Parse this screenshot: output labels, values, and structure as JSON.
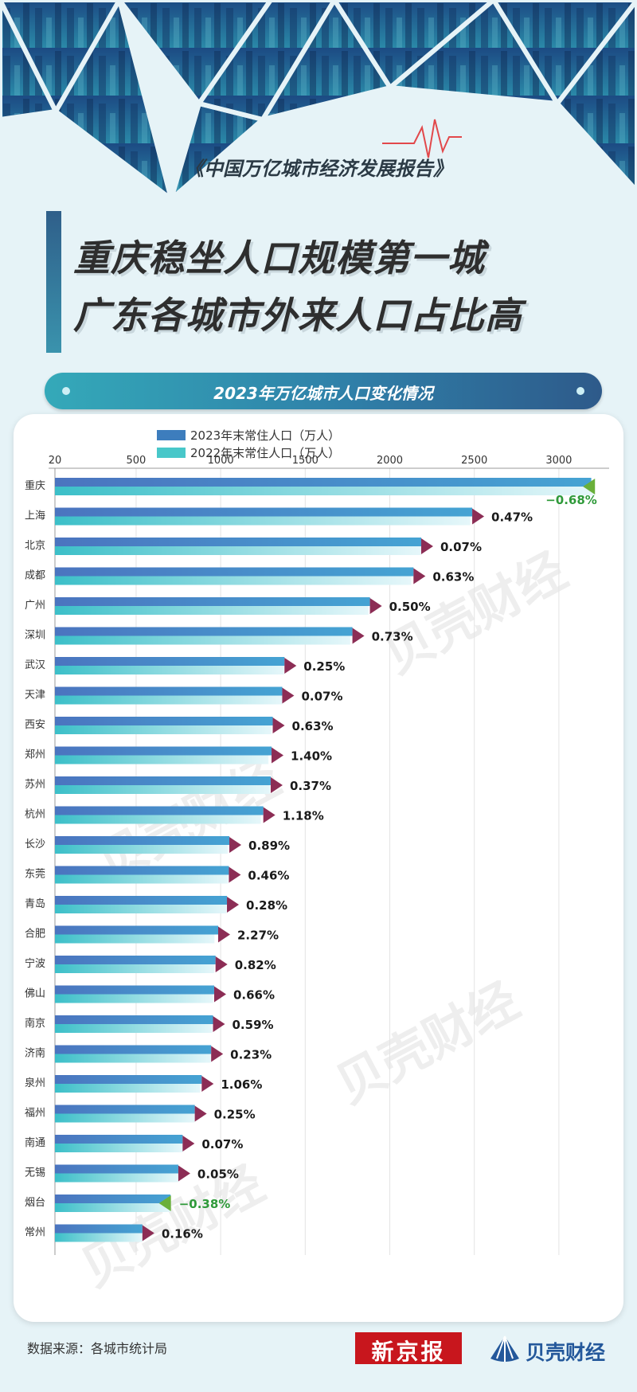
{
  "header": {
    "report_title": "《中国万亿城市经济发展报告》",
    "headline_line1": "重庆稳坐人口规模第一城",
    "headline_line2": "广东各城市外来人口占比高"
  },
  "chart_data": {
    "type": "bar",
    "orientation": "horizontal",
    "title": "2023年万亿城市人口变化情况",
    "x_ticks": [
      20,
      500,
      1000,
      1500,
      2000,
      2500,
      3000
    ],
    "xlim": [
      20,
      3250
    ],
    "legend_position": "top",
    "categories": [
      "重庆",
      "上海",
      "北京",
      "成都",
      "广州",
      "深圳",
      "武汉",
      "天津",
      "西安",
      "郑州",
      "苏州",
      "杭州",
      "长沙",
      "东莞",
      "青岛",
      "合肥",
      "宁波",
      "佛山",
      "南京",
      "济南",
      "泉州",
      "福州",
      "南通",
      "无锡",
      "烟台",
      "常州"
    ],
    "series": [
      {
        "name": "2023年末常住人口（万人）",
        "color": "#3d7dbd",
        "values": [
          3191.4,
          2487.5,
          2185.8,
          2140.3,
          1882.7,
          1779.0,
          1377.4,
          1364.0,
          1307.9,
          1300.8,
          1295.8,
          1252.2,
          1051.3,
          1048.5,
          1037.2,
          985.3,
          969.7,
          961.5,
          954.7,
          943.7,
          887.9,
          846.9,
          774.9,
          749.5,
          703.3,
          537.2
        ]
      },
      {
        "name": "2022年末常住人口（万人）",
        "color": "#48c7c9",
        "values": [
          3213.3,
          2475.9,
          2184.3,
          2126.8,
          1873.4,
          1766.2,
          1374.0,
          1363.0,
          1299.6,
          1282.8,
          1291.1,
          1237.6,
          1042.1,
          1043.7,
          1034.3,
          963.4,
          961.8,
          955.2,
          949.1,
          941.5,
          878.6,
          844.8,
          774.4,
          749.1,
          706.0,
          536.3
        ]
      }
    ],
    "change_labels": [
      "−0.68%",
      "0.47%",
      "0.07%",
      "0.63%",
      "0.50%",
      "0.73%",
      "0.25%",
      "0.07%",
      "0.63%",
      "1.40%",
      "0.37%",
      "1.18%",
      "0.89%",
      "0.46%",
      "0.28%",
      "2.27%",
      "0.82%",
      "0.66%",
      "0.59%",
      "0.23%",
      "1.06%",
      "0.25%",
      "0.07%",
      "0.05%",
      "−0.38%",
      "0.16%"
    ],
    "colors": {
      "increase_marker": "#8c2d55",
      "decrease_marker": "#6ab03a",
      "decrease_text": "#2f9a3a"
    }
  },
  "footer": {
    "source": "数据来源：各城市统计局",
    "logo_xjb": "新京报",
    "logo_bk": "贝壳财经"
  },
  "watermark": "贝壳财经"
}
